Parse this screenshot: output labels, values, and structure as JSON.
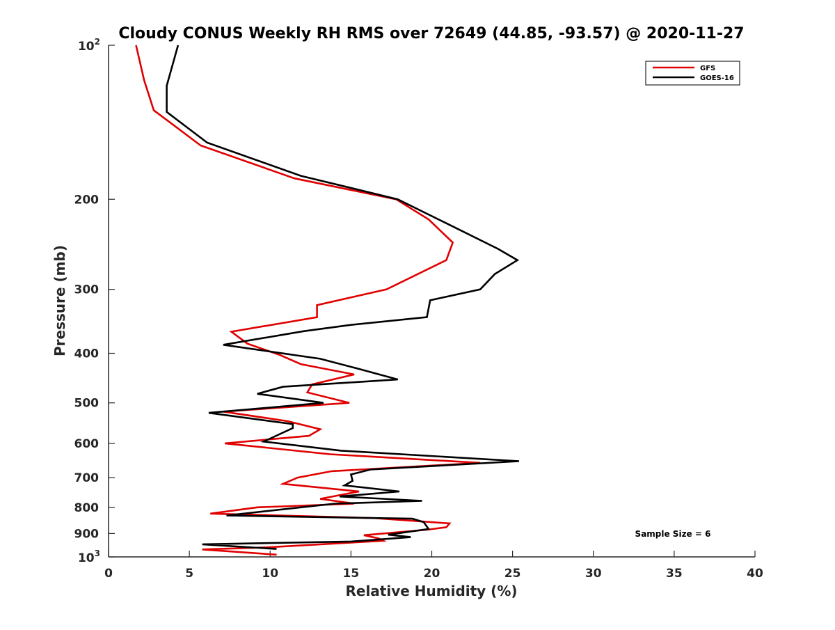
{
  "chart_data": {
    "type": "line",
    "title": "Cloudy CONUS Weekly RH RMS over 72649 (44.85, -93.57) @ 2020-11-27",
    "xlabel": "Relative Humidity (%)",
    "ylabel": "Pressure (mb)",
    "xlim": [
      0,
      40
    ],
    "ylim": [
      100,
      1000
    ],
    "yscale": "log",
    "y_reversed": true,
    "grid": false,
    "legend_position": "top-right",
    "x_ticks": [
      0,
      5,
      10,
      15,
      20,
      25,
      30,
      35,
      40
    ],
    "x_tick_labels": [
      "0",
      "5",
      "10",
      "15",
      "20",
      "25",
      "30",
      "35",
      "40"
    ],
    "y_ticks": [
      {
        "value": 100,
        "label": "10",
        "exp": "2"
      },
      {
        "value": 200,
        "label": "200"
      },
      {
        "value": 300,
        "label": "300"
      },
      {
        "value": 400,
        "label": "400"
      },
      {
        "value": 500,
        "label": "500"
      },
      {
        "value": 600,
        "label": "600"
      },
      {
        "value": 700,
        "label": "700"
      },
      {
        "value": 800,
        "label": "800"
      },
      {
        "value": 900,
        "label": "900"
      },
      {
        "value": 1000,
        "label": "10",
        "exp": "3"
      }
    ],
    "annotation": "Sample Size = 6",
    "series": [
      {
        "name": "GFS",
        "color": "#e00000",
        "points": [
          [
            1.7,
            100
          ],
          [
            2.2,
            117
          ],
          [
            2.8,
            134
          ],
          [
            5.7,
            157
          ],
          [
            11.5,
            182
          ],
          [
            17.8,
            200
          ],
          [
            19.8,
            219
          ],
          [
            21.3,
            243
          ],
          [
            20.9,
            263
          ],
          [
            17.2,
            300
          ],
          [
            12.9,
            322
          ],
          [
            12.9,
            340
          ],
          [
            7.6,
            363
          ],
          [
            8.6,
            383
          ],
          [
            10.6,
            403
          ],
          [
            11.9,
            420
          ],
          [
            15.2,
            440
          ],
          [
            12.6,
            460
          ],
          [
            12.3,
            477
          ],
          [
            14.9,
            500
          ],
          [
            7.1,
            520
          ],
          [
            11.1,
            543
          ],
          [
            13.1,
            563
          ],
          [
            12.4,
            580
          ],
          [
            7.2,
            600
          ],
          [
            13.7,
            630
          ],
          [
            23.0,
            655
          ],
          [
            13.8,
            680
          ],
          [
            11.7,
            700
          ],
          [
            10.8,
            720
          ],
          [
            15.5,
            745
          ],
          [
            13.1,
            770
          ],
          [
            15.2,
            787
          ],
          [
            9.2,
            800
          ],
          [
            6.3,
            823
          ],
          [
            16.5,
            840
          ],
          [
            21.1,
            860
          ],
          [
            20.9,
            875
          ],
          [
            19.7,
            885
          ],
          [
            15.8,
            907
          ],
          [
            16.7,
            920
          ],
          [
            17.0,
            930
          ],
          [
            9.8,
            958
          ],
          [
            5.8,
            967
          ],
          [
            10.4,
            990
          ]
        ]
      },
      {
        "name": "GOES-16",
        "color": "#000000",
        "points": [
          [
            4.3,
            100
          ],
          [
            3.6,
            120
          ],
          [
            3.6,
            135
          ],
          [
            6.1,
            155
          ],
          [
            11.9,
            180
          ],
          [
            17.9,
            200
          ],
          [
            20.8,
            222
          ],
          [
            24.1,
            250
          ],
          [
            25.3,
            263
          ],
          [
            23.9,
            280
          ],
          [
            23.0,
            300
          ],
          [
            19.9,
            315
          ],
          [
            19.7,
            340
          ],
          [
            15.0,
            352
          ],
          [
            12.1,
            362
          ],
          [
            7.1,
            385
          ],
          [
            13.1,
            410
          ],
          [
            15.6,
            430
          ],
          [
            17.9,
            450
          ],
          [
            10.8,
            465
          ],
          [
            9.2,
            480
          ],
          [
            13.3,
            500
          ],
          [
            6.2,
            523
          ],
          [
            11.4,
            550
          ],
          [
            11.4,
            560
          ],
          [
            9.6,
            595
          ],
          [
            14.4,
            620
          ],
          [
            25.4,
            650
          ],
          [
            16.2,
            675
          ],
          [
            15.0,
            690
          ],
          [
            15.1,
            710
          ],
          [
            14.6,
            725
          ],
          [
            18.0,
            745
          ],
          [
            14.3,
            762
          ],
          [
            19.4,
            777
          ],
          [
            14.0,
            787
          ],
          [
            7.3,
            830
          ],
          [
            18.8,
            842
          ],
          [
            19.5,
            855
          ],
          [
            19.8,
            882
          ],
          [
            17.3,
            905
          ],
          [
            18.7,
            915
          ],
          [
            15.0,
            933
          ],
          [
            5.8,
            945
          ],
          [
            10.4,
            965
          ]
        ]
      }
    ]
  }
}
